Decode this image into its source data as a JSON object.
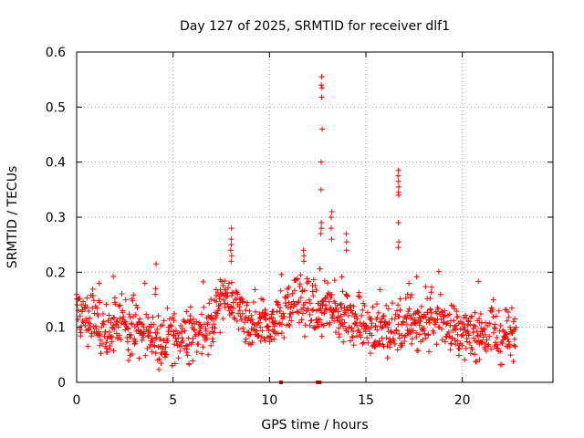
{
  "chart_data": {
    "type": "scatter",
    "title": "Day 127 of 2025, SRMTID for receiver dlf1",
    "xlabel": "GPS time / hours",
    "ylabel": "SRMTID / TECUs",
    "xlim": [
      0,
      24.7
    ],
    "ylim": [
      0,
      0.6
    ],
    "xticks": [
      "0",
      "5",
      "10",
      "15",
      "20"
    ],
    "xtick_values": [
      0,
      5,
      10,
      15,
      20
    ],
    "yticks": [
      "0",
      "0.1",
      "0.2",
      "0.3",
      "0.4",
      "0.5",
      "0.6"
    ],
    "ytick_values": [
      0,
      0.1,
      0.2,
      0.3,
      0.4,
      0.5,
      0.6
    ],
    "grid": true,
    "marker": "+",
    "color": "#ff0000",
    "generated_series": {
      "description": "dense point cloud approximating visible data",
      "x_start": 0.0,
      "x_end": 22.8,
      "spacing": 0.03,
      "baseline_profile": [
        [
          0,
          0.14
        ],
        [
          0.3,
          0.12
        ],
        [
          1,
          0.11
        ],
        [
          1.5,
          0.08
        ],
        [
          2,
          0.1
        ],
        [
          3,
          0.1
        ],
        [
          4,
          0.08
        ],
        [
          4.5,
          0.07
        ],
        [
          5,
          0.08
        ],
        [
          6,
          0.08
        ],
        [
          7,
          0.11
        ],
        [
          7.5,
          0.15
        ],
        [
          8,
          0.14
        ],
        [
          9,
          0.1
        ],
        [
          10,
          0.1
        ],
        [
          10.5,
          0.12
        ],
        [
          11,
          0.14
        ],
        [
          12,
          0.14
        ],
        [
          12.5,
          0.12
        ],
        [
          13,
          0.13
        ],
        [
          14,
          0.12
        ],
        [
          15,
          0.1
        ],
        [
          16,
          0.09
        ],
        [
          17,
          0.11
        ],
        [
          18,
          0.11
        ],
        [
          19,
          0.11
        ],
        [
          20,
          0.09
        ],
        [
          21,
          0.09
        ],
        [
          22,
          0.08
        ],
        [
          22.8,
          0.09
        ]
      ]
    },
    "spikes": [
      {
        "x": 12.7,
        "values": [
          0.555,
          0.54,
          0.535,
          0.518,
          0.46,
          0.4,
          0.35,
          0.29,
          0.28,
          0.27
        ]
      },
      {
        "x": 16.7,
        "values": [
          0.385,
          0.375,
          0.365,
          0.355,
          0.345,
          0.34,
          0.29,
          0.255,
          0.245
        ]
      },
      {
        "x": 8.0,
        "values": [
          0.28,
          0.26,
          0.25,
          0.24,
          0.23,
          0.22
        ]
      },
      {
        "x": 4.1,
        "values": [
          0.215,
          0.17,
          0.16
        ]
      },
      {
        "x": 13.2,
        "values": [
          0.31,
          0.3,
          0.28,
          0.26
        ]
      },
      {
        "x": 14.0,
        "values": [
          0.27,
          0.255,
          0.24
        ]
      },
      {
        "x": 11.8,
        "values": [
          0.24,
          0.23,
          0.22
        ]
      }
    ],
    "x_markers": [
      10.6,
      12.5,
      12.6
    ]
  }
}
